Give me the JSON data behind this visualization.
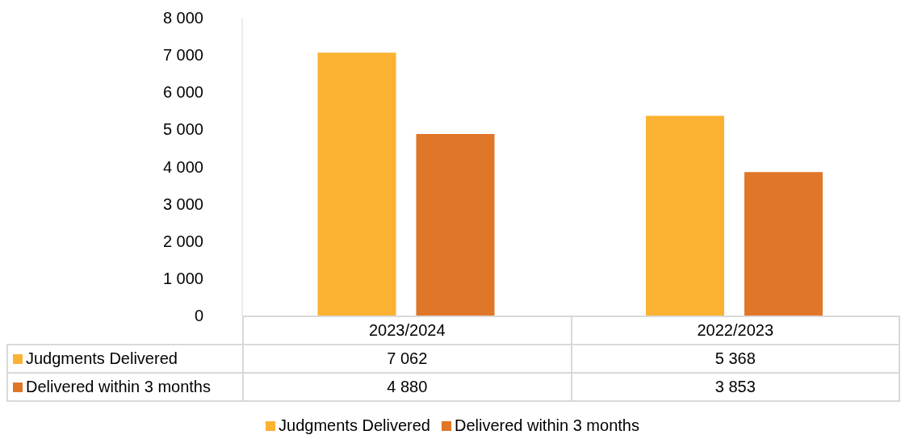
{
  "chart_data": {
    "type": "bar",
    "categories": [
      "2023/2024",
      "2022/2023"
    ],
    "series": [
      {
        "name": "Judgments Delivered",
        "color": "#fbb232",
        "values": [
          7062,
          5368
        ]
      },
      {
        "name": "Delivered within 3 months",
        "color": "#e07628",
        "values": [
          4880,
          3853
        ]
      }
    ],
    "ylim": [
      0,
      8000
    ],
    "yticks": [
      {
        "value": 0,
        "label": "0"
      },
      {
        "value": 1000,
        "label": "1 000"
      },
      {
        "value": 2000,
        "label": "2 000"
      },
      {
        "value": 3000,
        "label": "3 000"
      },
      {
        "value": 4000,
        "label": "4 000"
      },
      {
        "value": 5000,
        "label": "5 000"
      },
      {
        "value": 6000,
        "label": "6 000"
      },
      {
        "value": 7000,
        "label": "7 000"
      },
      {
        "value": 8000,
        "label": "8 000"
      }
    ],
    "data_labels": true,
    "legend": "bottom"
  }
}
